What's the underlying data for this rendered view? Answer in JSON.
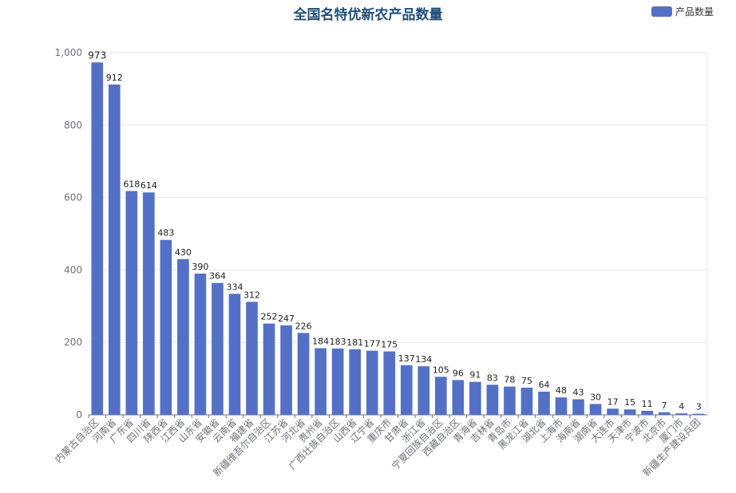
{
  "chart_data": {
    "type": "bar",
    "title": "全国名特优新农产品数量",
    "legend": {
      "entries": [
        "产品数量"
      ],
      "placement": "top-right"
    },
    "series": [
      {
        "name": "产品数量",
        "color": "#5470c6"
      }
    ],
    "categories": [
      "内蒙古自治区",
      "河南省",
      "广东省",
      "四川省",
      "陕西省",
      "江西省",
      "山东省",
      "安徽省",
      "云南省",
      "福建省",
      "新疆维吾尔自治区",
      "江苏省",
      "河北省",
      "贵州省",
      "广西壮族自治区",
      "山西省",
      "辽宁省",
      "重庆市",
      "甘肃省",
      "浙江省",
      "宁夏回族自治区",
      "西藏自治区",
      "青海省",
      "吉林省",
      "青岛市",
      "黑龙江省",
      "湖北省",
      "上海市",
      "海南省",
      "湖南省",
      "大连市",
      "天津市",
      "宁波市",
      "北京市",
      "厦门市",
      "新疆生产建设兵团"
    ],
    "values": [
      973,
      912,
      618,
      614,
      483,
      430,
      390,
      364,
      334,
      312,
      252,
      247,
      226,
      184,
      183,
      181,
      177,
      175,
      137,
      134,
      105,
      96,
      91,
      83,
      78,
      75,
      64,
      48,
      43,
      30,
      17,
      15,
      11,
      7,
      4,
      3
    ],
    "ylim": [
      0,
      1000
    ],
    "yticks": [
      "0",
      "200",
      "400",
      "600",
      "800",
      "1,000"
    ],
    "grid": true
  }
}
